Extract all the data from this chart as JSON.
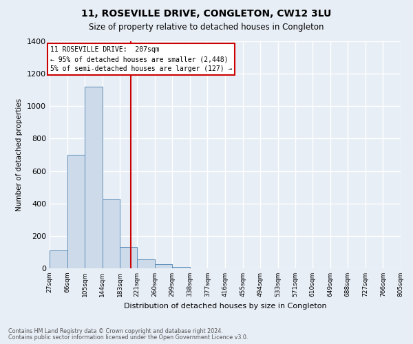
{
  "title": "11, ROSEVILLE DRIVE, CONGLETON, CW12 3LU",
  "subtitle": "Size of property relative to detached houses in Congleton",
  "xlabel": "Distribution of detached houses by size in Congleton",
  "ylabel": "Number of detached properties",
  "bin_edges": [
    27,
    66,
    105,
    144,
    183,
    221,
    260,
    299,
    338,
    377,
    416,
    455,
    494,
    533,
    571,
    610,
    649,
    688,
    727,
    766,
    805
  ],
  "bar_heights": [
    110,
    700,
    1120,
    430,
    130,
    55,
    25,
    10,
    0,
    0,
    0,
    0,
    0,
    0,
    0,
    0,
    0,
    0,
    0,
    0
  ],
  "bar_color": "#ccdaea",
  "bar_edge_color": "#5b8db8",
  "property_size": 207,
  "ylim": [
    0,
    1400
  ],
  "yticks": [
    0,
    200,
    400,
    600,
    800,
    1000,
    1200,
    1400
  ],
  "annotation_line1": "11 ROSEVILLE DRIVE:  207sqm",
  "annotation_line2": "← 95% of detached houses are smaller (2,448)",
  "annotation_line3": "5% of semi-detached houses are larger (127) →",
  "footnote1": "Contains HM Land Registry data © Crown copyright and database right 2024.",
  "footnote2": "Contains public sector information licensed under the Open Government Licence v3.0.",
  "bg_color": "#e8eef6",
  "grid_color": "#ffffff",
  "red_line_color": "#cc0000"
}
